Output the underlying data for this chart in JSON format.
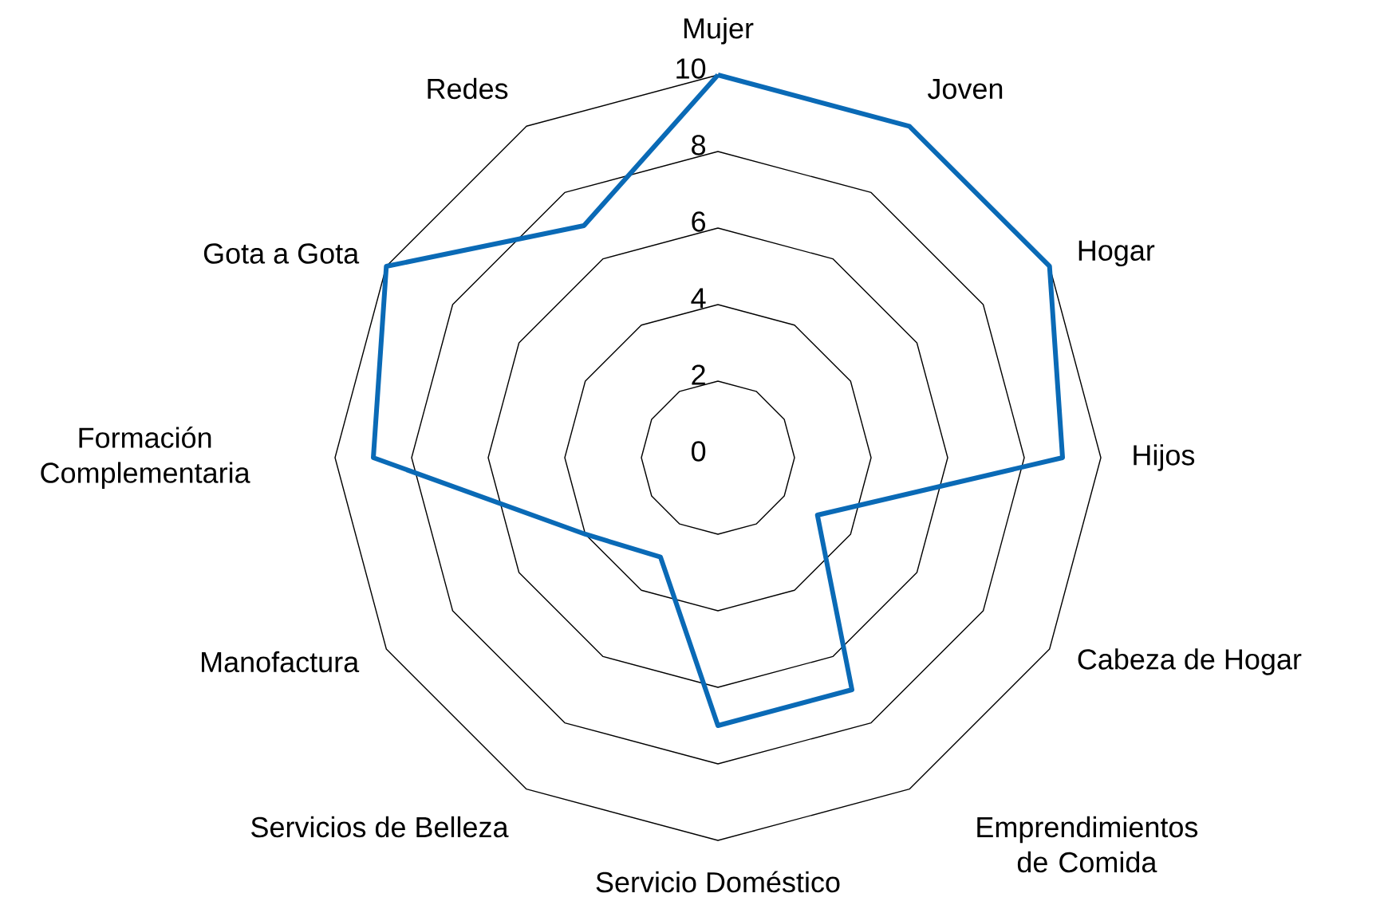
{
  "chart_data": {
    "type": "radar",
    "categories": [
      "Mujer",
      "Joven",
      "Hogar",
      "Hijos",
      "Cabeza de Hogar",
      "Emprendimientos de Comida",
      "Servicio Doméstico",
      "Servicios de Belleza",
      "Manofactura",
      "Formación Complementaria",
      "Gota a Gota",
      "Redes"
    ],
    "series": [
      {
        "color": "#0a6ab6",
        "values": [
          10,
          10,
          10,
          9,
          3,
          7,
          7,
          3,
          4,
          9,
          10,
          7
        ]
      }
    ],
    "ylim": [
      0,
      10
    ],
    "yticks": [
      0,
      2,
      4,
      6,
      8,
      10
    ],
    "grid": true
  }
}
